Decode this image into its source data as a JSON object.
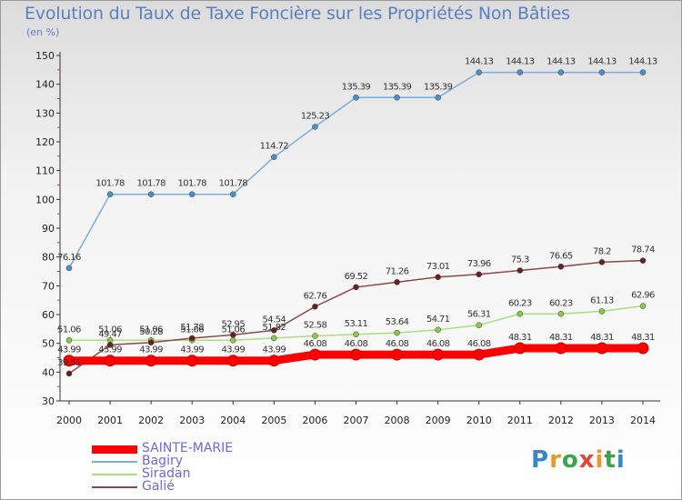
{
  "header": {
    "title": "Evolution du Taux de Taxe Foncière sur les Propriétés Non Bâties",
    "unit": "(en %)"
  },
  "logo": {
    "text": "Proxiti"
  },
  "chart_data": {
    "type": "line",
    "title": "Evolution du Taux de Taxe Foncière sur les Propriétés Non Bâties",
    "ylabel": "(en %)",
    "xlabel": "",
    "ylim": [
      30,
      150
    ],
    "yticks": [
      30,
      40,
      50,
      60,
      70,
      80,
      90,
      100,
      110,
      120,
      130,
      140,
      150
    ],
    "x": [
      "2000",
      "2001",
      "2002",
      "2003",
      "2004",
      "2005",
      "2006",
      "2007",
      "2008",
      "2009",
      "2010",
      "2011",
      "2012",
      "2013",
      "2014"
    ],
    "grid": false,
    "legend_position": "bottom-left",
    "series": [
      {
        "name": "SAINTE-MARIE",
        "color": "#ff0000",
        "marker_color": "#ff0000",
        "values": [
          43.99,
          43.99,
          43.99,
          43.99,
          43.99,
          43.99,
          46.08,
          46.08,
          46.08,
          46.08,
          46.08,
          48.31,
          48.31,
          48.31,
          48.31
        ],
        "labels": [
          "43.99",
          "43.99",
          "43.99",
          "43.99",
          "43.99",
          "43.99",
          "46.08",
          "46.08",
          "46.08",
          "46.08",
          "46.08",
          "48.31",
          "48.31",
          "48.31",
          "48.31"
        ]
      },
      {
        "name": "Bagiry",
        "color": "#7aaede",
        "marker_color": "#4a90d0",
        "values": [
          76.16,
          101.78,
          101.78,
          101.78,
          101.78,
          114.72,
          125.23,
          135.39,
          135.39,
          135.39,
          144.13,
          144.13,
          144.13,
          144.13,
          144.13
        ],
        "labels": [
          "76.16",
          "101.78",
          "101.78",
          "101.78",
          "101.78",
          "114.72",
          "125.23",
          "135.39",
          "135.39",
          "135.39",
          "144.13",
          "144.13",
          "144.13",
          "144.13",
          "144.13"
        ]
      },
      {
        "name": "Siradan",
        "color": "#a8e07a",
        "marker_color": "#88cc44",
        "values": [
          51.06,
          51.06,
          51.06,
          51.06,
          51.06,
          51.82,
          52.58,
          53.11,
          53.64,
          54.71,
          56.31,
          60.23,
          60.23,
          61.13,
          62.96
        ],
        "labels": [
          "51.06",
          "51.06",
          "51.06",
          "51.06",
          "51.06",
          "51.82",
          "52.58",
          "53.11",
          "53.64",
          "54.71",
          "56.31",
          "60.23",
          "60.23",
          "61.13",
          "62.96"
        ]
      },
      {
        "name": "Galié",
        "color": "#8a4a4a",
        "marker_color": "#6a2020",
        "values": [
          39.51,
          49.47,
          50.28,
          51.78,
          52.95,
          54.54,
          62.76,
          69.52,
          71.26,
          73.01,
          73.96,
          75.3,
          76.65,
          78.2,
          78.74
        ],
        "labels": [
          "39.51",
          "49.47",
          "50.28",
          "51.78",
          "52.95",
          "54.54",
          "62.76",
          "69.52",
          "71.26",
          "73.01",
          "73.96",
          "75.3",
          "76.65",
          "78.2",
          "78.74"
        ]
      }
    ]
  }
}
